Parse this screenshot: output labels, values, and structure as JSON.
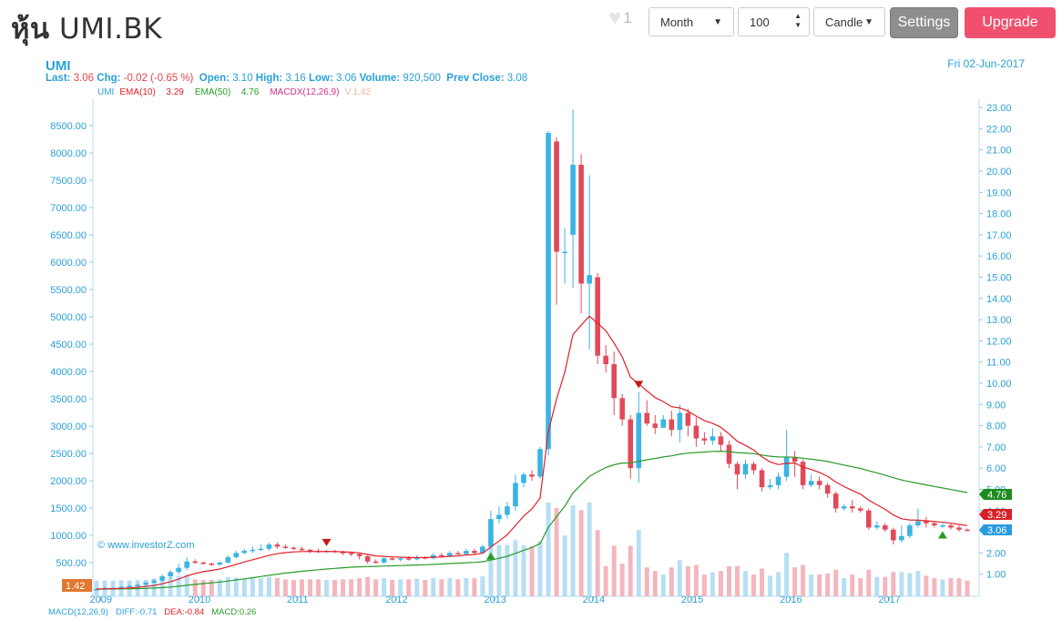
{
  "header": {
    "title_thai": "หุ้น",
    "title_symbol": "UMI.BK",
    "favorite_count": "1",
    "period_select": "Month",
    "count_value": "100",
    "chart_type_select": "Candle",
    "settings_label": "Settings",
    "upgrade_label": "Upgrade"
  },
  "quote": {
    "symbol": "UMI",
    "date": "Fri 02-Jun-2017",
    "last_label": "Last:",
    "last": "3.06",
    "chg_label": "Chg:",
    "chg": "-0.02 (-0.65 %)",
    "open_label": "Open:",
    "open": "3.10",
    "high_label": "High:",
    "high": "3.16",
    "low_label": "Low:",
    "low": "3.06",
    "volume_label": "Volume:",
    "volume": "920,500",
    "prev_label": "Prev Close:",
    "prev": "3.08"
  },
  "legend": {
    "umi": "UMI",
    "ema10_label": "EMA(10)",
    "ema10_value": "3.29",
    "ema50_label": "EMA(50)",
    "ema50_value": "4.76",
    "macd_label": "MACDX(12,26,9)",
    "vol_label": "V:1.42"
  },
  "watermark": "© www.investorZ.com",
  "macd_legend": {
    "macd": "MACD(12,26,9)",
    "diff": "DIFF:-0.71",
    "dea": "DEA:-0.84",
    "macd_val": "MACD:0.26"
  },
  "colors": {
    "up": "#3ab4e4",
    "down": "#e04a5a",
    "ema10": "#e0202a",
    "ema50": "#2a9a2a",
    "volume": "#a9d9f2",
    "volume_down": "#f2a9b2",
    "axis": "#2aa0d8"
  },
  "chart_data": {
    "type": "candlestick",
    "period": "monthly",
    "price_axis": {
      "side": "right",
      "min": 0,
      "max": 23,
      "ticks": [
        "1.00",
        "2.00",
        "3.00",
        "4.00",
        "5.00",
        "6.00",
        "7.00",
        "8.00",
        "9.00",
        "10.00",
        "11.00",
        "12.00",
        "13.00",
        "14.00",
        "15.00",
        "16.00",
        "17.00",
        "18.00",
        "19.00",
        "20.00",
        "21.00",
        "22.00",
        "23.00"
      ]
    },
    "volume_axis": {
      "side": "left",
      "ticks": [
        "500.00",
        "1000.00",
        "1500.00",
        "2000.00",
        "2500.00",
        "3000.00",
        "3500.00",
        "4000.00",
        "4500.00",
        "5000.00",
        "5500.00",
        "6000.00",
        "6500.00",
        "7000.00",
        "7500.00",
        "8000.00",
        "8500.00"
      ]
    },
    "x_ticks": [
      "2009",
      "2010",
      "2011",
      "2012",
      "2013",
      "2014",
      "2015",
      "2016",
      "2017"
    ],
    "grid": false,
    "price_labels": {
      "ema50": "4.76",
      "ema10": "3.29",
      "last": "3.06",
      "volume_left": "1.42"
    },
    "candles": [
      [
        0.3,
        0.3,
        0.25,
        0.35
      ],
      [
        0.3,
        0.35,
        0.28,
        0.4
      ],
      [
        0.35,
        0.35,
        0.3,
        0.4
      ],
      [
        0.35,
        0.4,
        0.33,
        0.45
      ],
      [
        0.4,
        0.45,
        0.38,
        0.5
      ],
      [
        0.45,
        0.5,
        0.42,
        0.55
      ],
      [
        0.5,
        0.6,
        0.48,
        0.65
      ],
      [
        0.6,
        0.7,
        0.55,
        0.8
      ],
      [
        0.7,
        0.9,
        0.65,
        1.0
      ],
      [
        0.9,
        1.1,
        0.8,
        1.2
      ],
      [
        1.1,
        1.3,
        1.0,
        1.5
      ],
      [
        1.3,
        1.6,
        1.2,
        1.8
      ],
      [
        1.6,
        1.55,
        1.5,
        1.7
      ],
      [
        1.55,
        1.5,
        1.45,
        1.6
      ],
      [
        1.5,
        1.45,
        1.4,
        1.55
      ],
      [
        1.45,
        1.55,
        1.4,
        1.6
      ],
      [
        1.55,
        1.8,
        1.5,
        1.9
      ],
      [
        1.8,
        2.0,
        1.75,
        2.1
      ],
      [
        2.0,
        2.1,
        1.95,
        2.2
      ],
      [
        2.1,
        2.15,
        2.0,
        2.3
      ],
      [
        2.15,
        2.2,
        2.1,
        2.4
      ],
      [
        2.2,
        2.4,
        2.1,
        2.5
      ],
      [
        2.4,
        2.3,
        2.2,
        2.5
      ],
      [
        2.3,
        2.25,
        2.2,
        2.4
      ],
      [
        2.25,
        2.2,
        2.15,
        2.3
      ],
      [
        2.2,
        2.15,
        2.1,
        2.3
      ],
      [
        2.15,
        2.1,
        2.0,
        2.2
      ],
      [
        2.1,
        2.05,
        2.0,
        2.2
      ],
      [
        2.05,
        2.1,
        2.0,
        2.15
      ],
      [
        2.1,
        2.05,
        2.0,
        2.15
      ],
      [
        2.05,
        2.0,
        1.9,
        2.1
      ],
      [
        2.0,
        1.95,
        1.85,
        2.05
      ],
      [
        1.95,
        1.85,
        1.7,
        2.0
      ],
      [
        1.85,
        1.6,
        1.5,
        1.9
      ],
      [
        1.6,
        1.55,
        1.5,
        1.7
      ],
      [
        1.55,
        1.75,
        1.5,
        1.8
      ],
      [
        1.75,
        1.7,
        1.65,
        1.8
      ],
      [
        1.7,
        1.75,
        1.6,
        1.8
      ],
      [
        1.75,
        1.7,
        1.65,
        1.85
      ],
      [
        1.7,
        1.8,
        1.65,
        1.9
      ],
      [
        1.8,
        1.75,
        1.7,
        1.85
      ],
      [
        1.75,
        1.9,
        1.7,
        2.0
      ],
      [
        1.9,
        1.85,
        1.8,
        2.0
      ],
      [
        1.85,
        2.0,
        1.8,
        2.1
      ],
      [
        2.0,
        1.95,
        1.9,
        2.1
      ],
      [
        1.95,
        2.1,
        1.9,
        2.2
      ],
      [
        2.1,
        2.0,
        1.9,
        2.2
      ],
      [
        2.0,
        2.3,
        1.95,
        2.4
      ],
      [
        2.3,
        3.6,
        2.2,
        4.0
      ],
      [
        3.6,
        3.8,
        3.4,
        4.2
      ],
      [
        3.8,
        4.2,
        3.6,
        4.4
      ],
      [
        4.2,
        5.3,
        4.0,
        5.7
      ],
      [
        5.3,
        5.7,
        5.1,
        5.8
      ],
      [
        5.7,
        5.6,
        5.4,
        5.9
      ],
      [
        5.6,
        6.9,
        5.5,
        7.0
      ],
      [
        6.9,
        21.8,
        6.6,
        21.9
      ],
      [
        21.4,
        16.2,
        13.7,
        21.6
      ],
      [
        16.2,
        16.2,
        14.7,
        17.3
      ],
      [
        17.0,
        20.3,
        14.5,
        22.9
      ],
      [
        20.3,
        14.7,
        13.3,
        20.8
      ],
      [
        14.7,
        15.1,
        11.6,
        19.8
      ],
      [
        15.0,
        11.3,
        10.9,
        15.2
      ],
      [
        11.3,
        10.9,
        10.5,
        11.8
      ],
      [
        10.9,
        9.3,
        8.5,
        11.5
      ],
      [
        9.3,
        8.3,
        8.0,
        9.5
      ],
      [
        8.3,
        6.0,
        5.5,
        8.5
      ],
      [
        6.0,
        8.6,
        5.3,
        9.6
      ],
      [
        8.6,
        8.1,
        8.0,
        9.2
      ],
      [
        8.1,
        7.9,
        7.6,
        8.5
      ],
      [
        7.9,
        8.3,
        7.9,
        8.5
      ],
      [
        8.3,
        7.8,
        7.5,
        8.7
      ],
      [
        7.8,
        8.6,
        7.2,
        9.0
      ],
      [
        8.6,
        8.0,
        7.5,
        8.8
      ],
      [
        8.0,
        7.4,
        7.0,
        8.4
      ],
      [
        7.4,
        7.3,
        7.1,
        7.7
      ],
      [
        7.3,
        7.5,
        7.1,
        7.9
      ],
      [
        7.5,
        7.1,
        6.8,
        7.7
      ],
      [
        7.1,
        6.2,
        6.0,
        7.3
      ],
      [
        6.2,
        5.7,
        5.0,
        6.3
      ],
      [
        5.7,
        6.2,
        5.5,
        6.4
      ],
      [
        6.2,
        5.9,
        5.7,
        6.3
      ],
      [
        5.9,
        5.1,
        4.9,
        6.0
      ],
      [
        5.1,
        5.2,
        5.0,
        5.5
      ],
      [
        5.2,
        5.6,
        5.0,
        5.8
      ],
      [
        5.6,
        6.5,
        5.4,
        7.8
      ],
      [
        6.5,
        6.3,
        5.6,
        6.8
      ],
      [
        6.3,
        5.2,
        5.0,
        6.4
      ],
      [
        5.2,
        5.4,
        5.1,
        5.7
      ],
      [
        5.4,
        5.2,
        5.0,
        5.6
      ],
      [
        5.2,
        4.8,
        4.6,
        5.3
      ],
      [
        4.8,
        4.1,
        3.9,
        4.9
      ],
      [
        4.1,
        4.2,
        4.0,
        4.3
      ],
      [
        4.2,
        4.1,
        3.9,
        4.5
      ],
      [
        4.1,
        4.0,
        3.9,
        4.2
      ],
      [
        4.0,
        3.2,
        3.1,
        4.1
      ],
      [
        3.2,
        3.3,
        3.1,
        3.5
      ],
      [
        3.3,
        3.1,
        3.0,
        3.4
      ],
      [
        3.1,
        2.6,
        2.4,
        3.2
      ],
      [
        2.6,
        2.8,
        2.5,
        3.3
      ],
      [
        2.8,
        3.3,
        2.7,
        3.4
      ],
      [
        3.3,
        3.5,
        3.2,
        4.1
      ],
      [
        3.5,
        3.4,
        3.2,
        3.7
      ],
      [
        3.4,
        3.3,
        3.2,
        3.5
      ],
      [
        3.3,
        3.3,
        3.2,
        3.4
      ],
      [
        3.3,
        3.2,
        3.1,
        3.4
      ],
      [
        3.2,
        3.1,
        3.0,
        3.3
      ],
      [
        3.1,
        3.06,
        3.06,
        3.16
      ]
    ],
    "signals": [
      {
        "type": "sell",
        "index": 28
      },
      {
        "type": "buy",
        "index": 48
      },
      {
        "type": "sell",
        "index": 66
      },
      {
        "type": "buy",
        "index": 103
      }
    ]
  }
}
